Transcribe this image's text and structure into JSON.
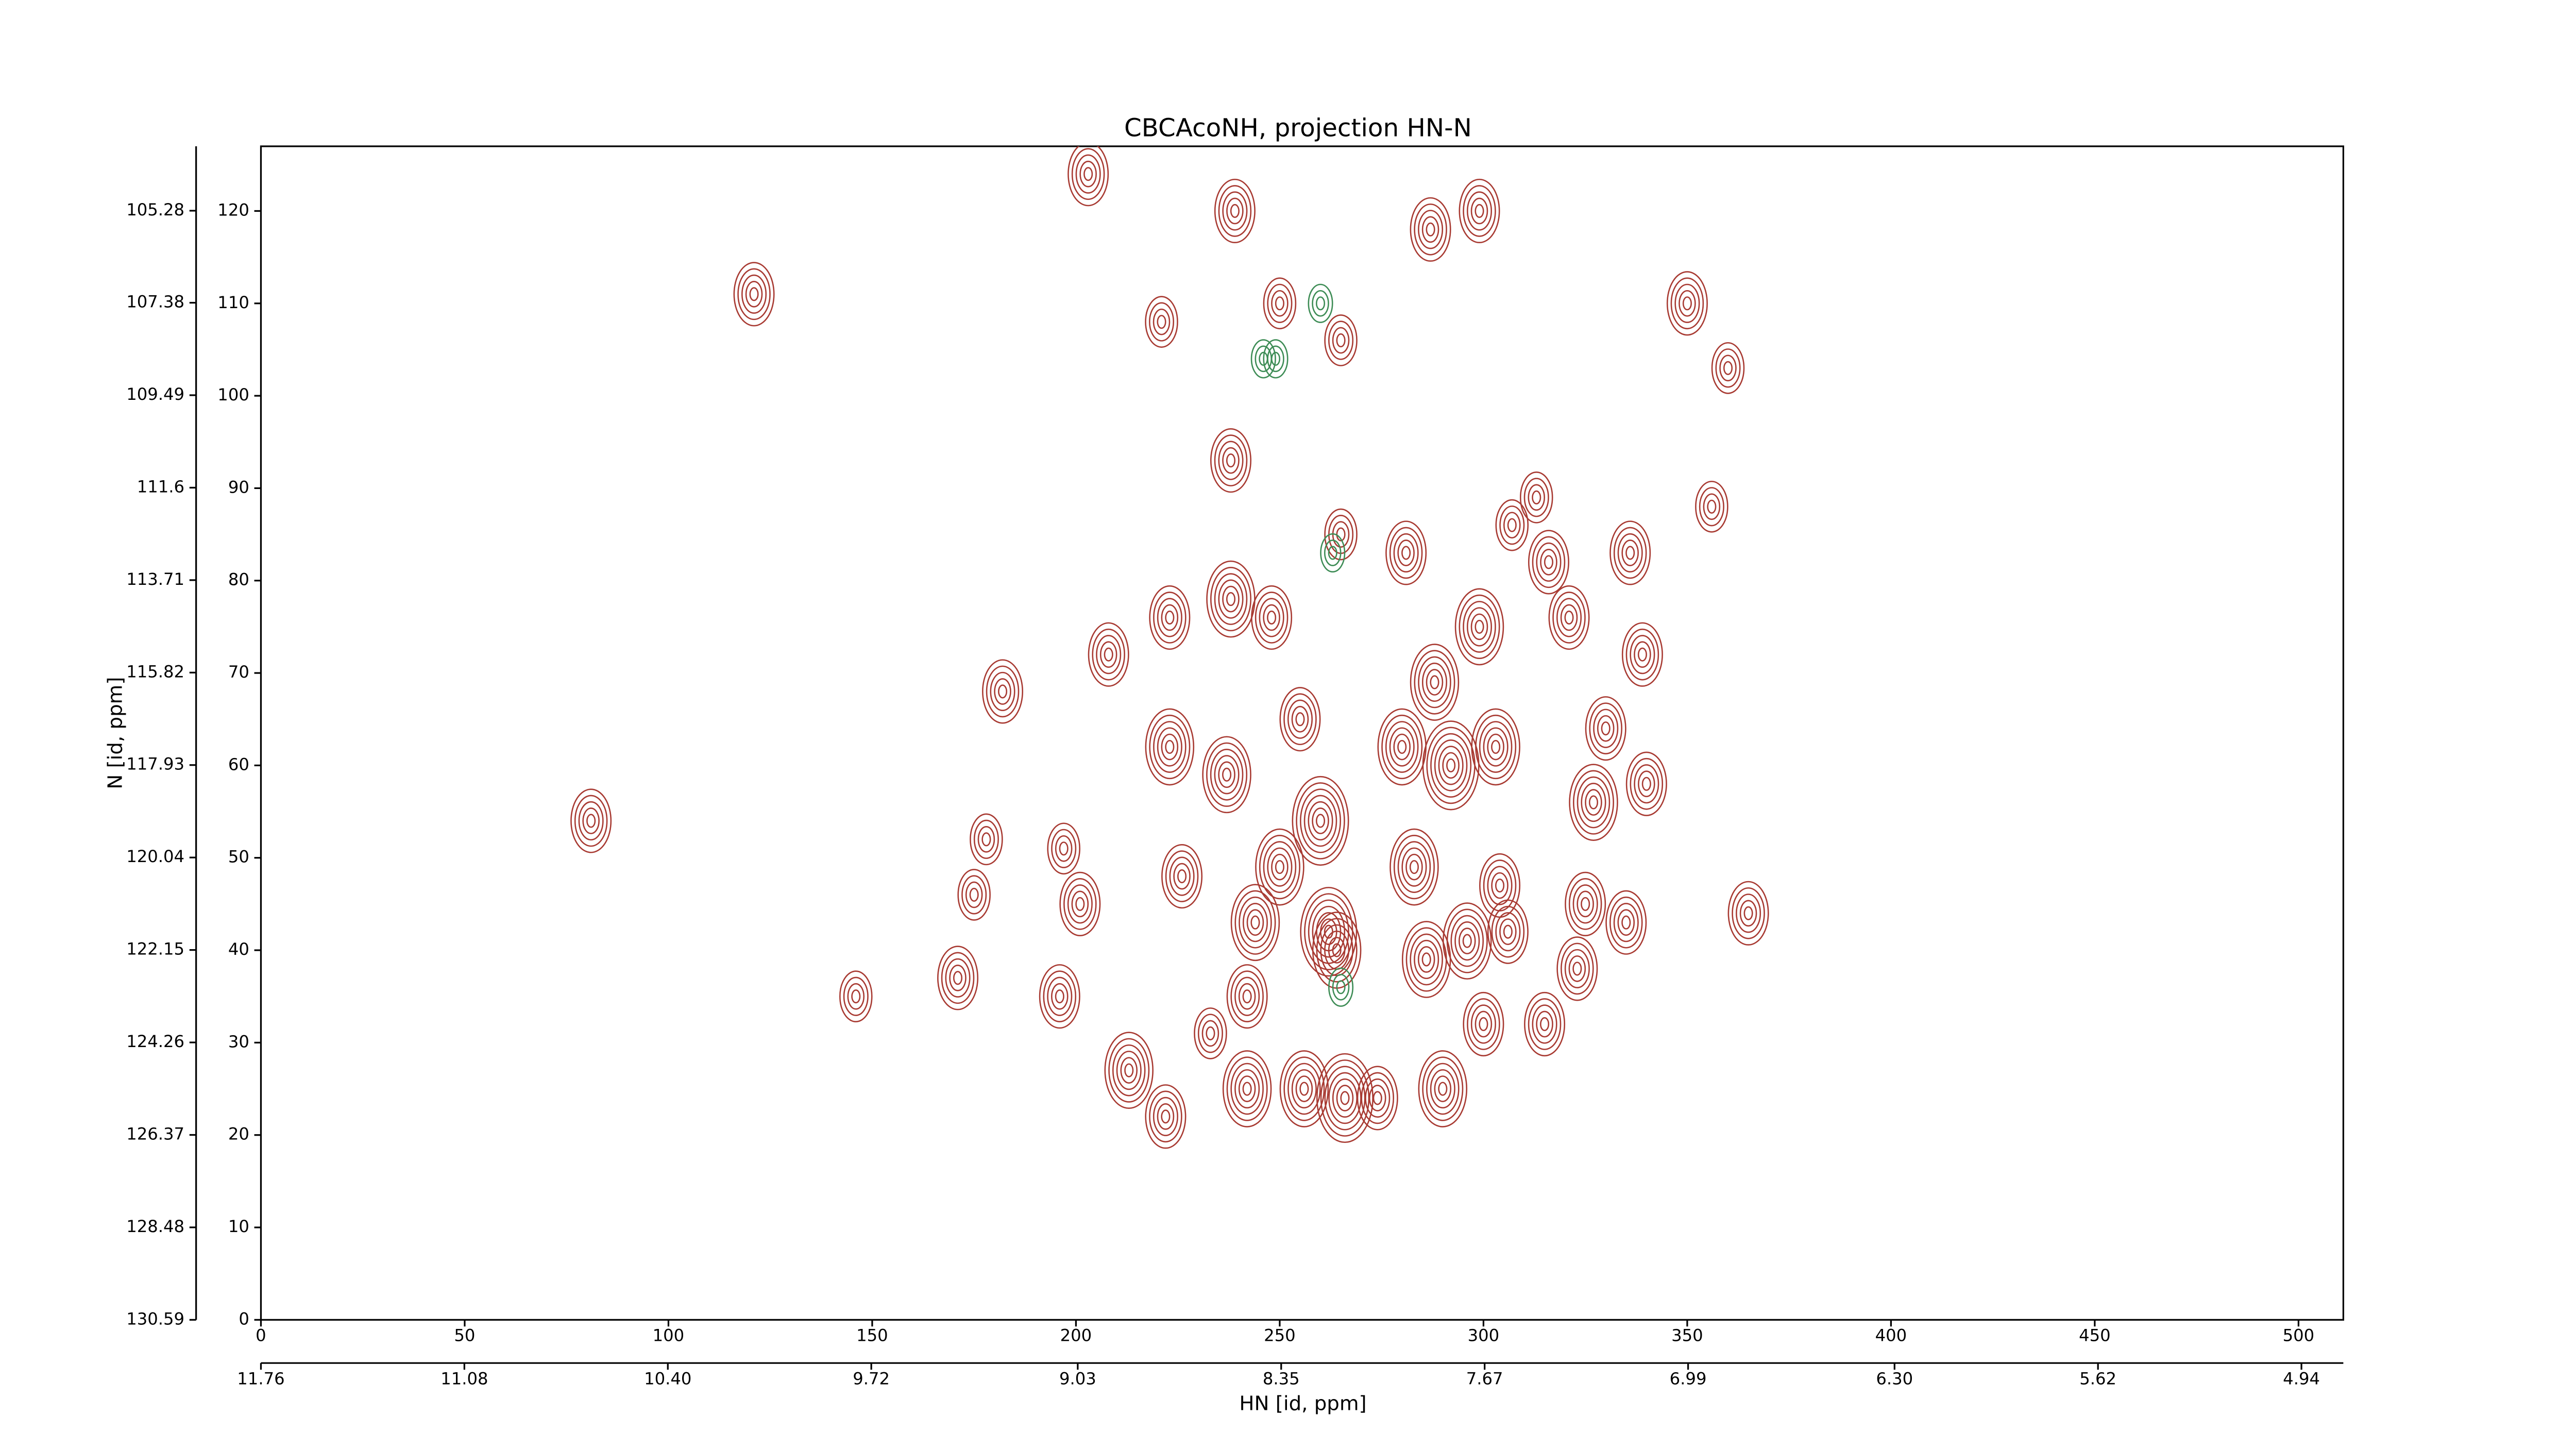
{
  "chart_data": {
    "type": "contour",
    "title": "CBCAcoNH, projection HN-N",
    "xlabel": "HN [id, ppm]",
    "ylabel": "N [id, ppm]",
    "xlim": [
      0,
      511
    ],
    "ylim": [
      0,
      127
    ],
    "xticks": [
      0,
      50,
      100,
      150,
      200,
      250,
      300,
      350,
      400,
      450,
      500
    ],
    "yticks": [
      0,
      10,
      20,
      30,
      40,
      50,
      60,
      70,
      80,
      90,
      100,
      110,
      120
    ],
    "x2lim": [
      11.76,
      4.8
    ],
    "x2ticks": [
      11.76,
      11.08,
      {
        "value": 10.4,
        "label": "10.40"
      },
      9.72,
      9.03,
      8.35,
      7.67,
      6.99,
      {
        "value": 6.3,
        "label": "6.30"
      },
      5.62,
      4.94
    ],
    "y2lim": [
      130.59,
      103.81
    ],
    "y2ticks": [
      130.59,
      128.48,
      126.37,
      124.26,
      122.15,
      120.04,
      117.93,
      115.82,
      113.71,
      111.6,
      109.49,
      107.38,
      105.28
    ],
    "series": [
      {
        "color": "#a83a32",
        "x": [
          121,
          81,
          146,
          171,
          175,
          178,
          182,
          196,
          197,
          201,
          203,
          208,
          213,
          221,
          222,
          223,
          223,
          226,
          233,
          237,
          238,
          238,
          239,
          242,
          242,
          244,
          248,
          250,
          250,
          255,
          256,
          260,
          262,
          264,
          266,
          265,
          265,
          274,
          280,
          281,
          283,
          286,
          287,
          288,
          290,
          292,
          296,
          299,
          299,
          300,
          303,
          304,
          306,
          307,
          313,
          315,
          316,
          321,
          323,
          325,
          327,
          330,
          335,
          336,
          339,
          340,
          350,
          360,
          356,
          365
        ],
        "y": [
          111,
          54,
          35,
          37,
          46,
          52,
          68,
          35,
          51,
          45,
          124,
          72,
          27,
          108,
          22,
          76,
          62,
          48,
          31,
          59,
          78,
          93,
          120,
          25,
          35,
          43,
          76,
          110,
          49,
          65,
          25,
          54,
          42,
          40,
          24,
          106,
          85,
          24,
          62,
          83,
          49,
          39,
          118,
          69,
          25,
          60,
          41,
          75,
          120,
          32,
          62,
          47,
          42,
          86,
          89,
          32,
          82,
          76,
          38,
          45,
          56,
          64,
          43,
          83,
          72,
          58,
          110,
          103,
          88,
          44
        ],
        "levels": [
          5,
          5,
          4,
          5,
          4,
          4,
          5,
          5,
          4,
          5,
          5,
          5,
          6,
          4,
          5,
          5,
          6,
          5,
          4,
          6,
          6,
          5,
          5,
          6,
          5,
          6,
          5,
          4,
          6,
          5,
          6,
          7,
          7,
          6,
          7,
          4,
          4,
          5,
          6,
          5,
          6,
          6,
          5,
          6,
          6,
          7,
          6,
          6,
          5,
          5,
          6,
          5,
          5,
          4,
          4,
          5,
          5,
          5,
          5,
          5,
          6,
          5,
          5,
          5,
          5,
          5,
          5,
          4,
          4,
          5
        ]
      },
      {
        "color": "#3d8c55",
        "x": [
          246,
          249,
          260,
          263,
          265
        ],
        "y": [
          104,
          104,
          110,
          83,
          36
        ],
        "levels": [
          3,
          3,
          3,
          3,
          3
        ]
      }
    ]
  }
}
